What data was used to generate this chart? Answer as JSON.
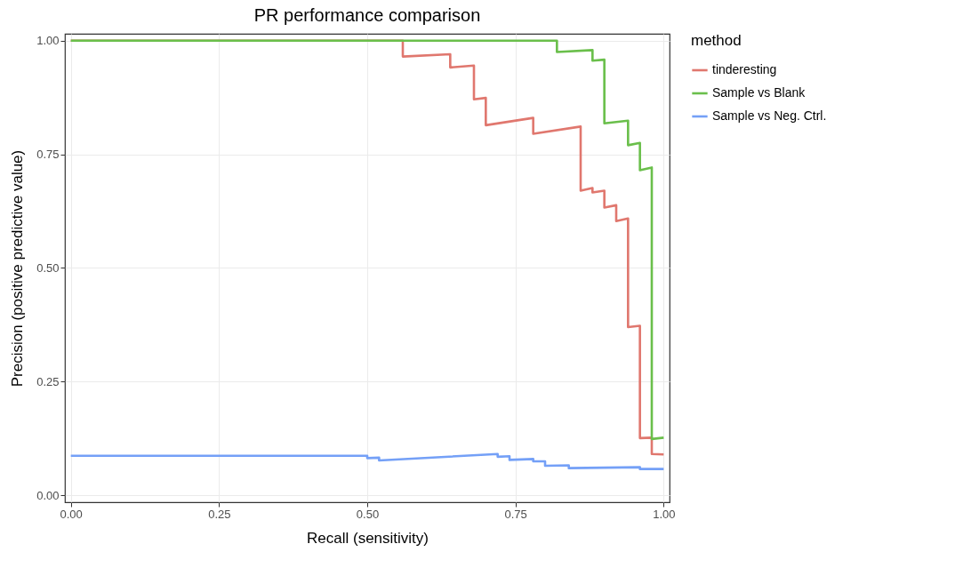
{
  "chart_data": {
    "type": "line",
    "title": "PR performance comparison",
    "xlabel": "Recall (sensitivity)",
    "ylabel": "Precision (positive predictive value)",
    "legend_title": "method",
    "legend": "right",
    "grid": true,
    "line_style": "solid",
    "xlim": [
      -0.01,
      1.01
    ],
    "ylim": [
      -0.015,
      1.015
    ],
    "xticks": [
      {
        "value": 0,
        "label": "0.00"
      },
      {
        "value": 0.25,
        "label": "0.25"
      },
      {
        "value": 0.5,
        "label": "0.50"
      },
      {
        "value": 0.75,
        "label": "0.75"
      },
      {
        "value": 1,
        "label": "1.00"
      }
    ],
    "yticks": [
      {
        "value": 0,
        "label": "0.00"
      },
      {
        "value": 0.25,
        "label": "0.25"
      },
      {
        "value": 0.5,
        "label": "0.50"
      },
      {
        "value": 0.75,
        "label": "0.75"
      },
      {
        "value": 1,
        "label": "1.00"
      }
    ],
    "series": [
      {
        "name": "tinderesting",
        "color": "#e0776e",
        "x": [
          0,
          0.56,
          0.56,
          0.64,
          0.64,
          0.68,
          0.68,
          0.7,
          0.7,
          0.78,
          0.78,
          0.86,
          0.86,
          0.88,
          0.88,
          0.9,
          0.9,
          0.92,
          0.92,
          0.94,
          0.94,
          0.96,
          0.96,
          0.98,
          0.98,
          1.0
        ],
        "values": [
          1,
          1,
          0.965,
          0.97,
          0.941,
          0.945,
          0.871,
          0.874,
          0.814,
          0.83,
          0.795,
          0.811,
          0.67,
          0.676,
          0.666,
          0.67,
          0.633,
          0.638,
          0.603,
          0.609,
          0.37,
          0.373,
          0.126,
          0.127,
          0.091,
          0.09
        ]
      },
      {
        "name": "Sample vs Blank",
        "color": "#6abf4b",
        "x": [
          0,
          0.82,
          0.82,
          0.88,
          0.88,
          0.9,
          0.9,
          0.94,
          0.94,
          0.96,
          0.96,
          0.98,
          0.98,
          1.0
        ],
        "values": [
          1,
          1,
          0.975,
          0.979,
          0.956,
          0.958,
          0.818,
          0.824,
          0.77,
          0.775,
          0.715,
          0.721,
          0.124,
          0.127
        ]
      },
      {
        "name": "Sample vs Neg. Ctrl.",
        "color": "#74a0f7",
        "x": [
          0,
          0.5,
          0.5,
          0.52,
          0.52,
          0.72,
          0.72,
          0.74,
          0.74,
          0.78,
          0.78,
          0.8,
          0.8,
          0.84,
          0.84,
          0.96,
          0.96,
          1.0
        ],
        "values": [
          0.087,
          0.087,
          0.082,
          0.083,
          0.077,
          0.091,
          0.085,
          0.086,
          0.078,
          0.08,
          0.075,
          0.075,
          0.065,
          0.066,
          0.06,
          0.062,
          0.058,
          0.058
        ]
      }
    ]
  }
}
